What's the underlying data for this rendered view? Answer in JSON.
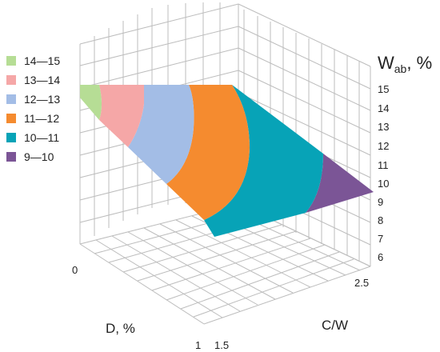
{
  "chart_data": {
    "type": "surface",
    "z_axis": {
      "label_main": "W",
      "label_sub": "ab",
      "label_suffix": ", %",
      "range": [
        6,
        15
      ],
      "ticks": [
        "6",
        "7",
        "8",
        "9",
        "10",
        "11",
        "12",
        "13",
        "14",
        "15"
      ]
    },
    "x_axis": {
      "label": "C/W",
      "ticks": [
        "1.5",
        "2.5"
      ]
    },
    "y_axis": {
      "label": "D, %",
      "ticks": [
        "0",
        "1"
      ]
    },
    "grid": true,
    "legend_position": "left",
    "series": [
      {
        "name": "14—15",
        "range": [
          14,
          15
        ],
        "color": "#b6dd95"
      },
      {
        "name": "13—14",
        "range": [
          13,
          14
        ],
        "color": "#f5a7a7"
      },
      {
        "name": "12—13",
        "range": [
          12,
          13
        ],
        "color": "#a3bde6"
      },
      {
        "name": "11—12",
        "range": [
          11,
          12
        ],
        "color": "#f58b2f"
      },
      {
        "name": "10—11",
        "range": [
          10,
          11
        ],
        "color": "#07a3b7"
      },
      {
        "name": "9—10",
        "range": [
          9,
          10
        ],
        "color": "#7b5596"
      }
    ]
  }
}
